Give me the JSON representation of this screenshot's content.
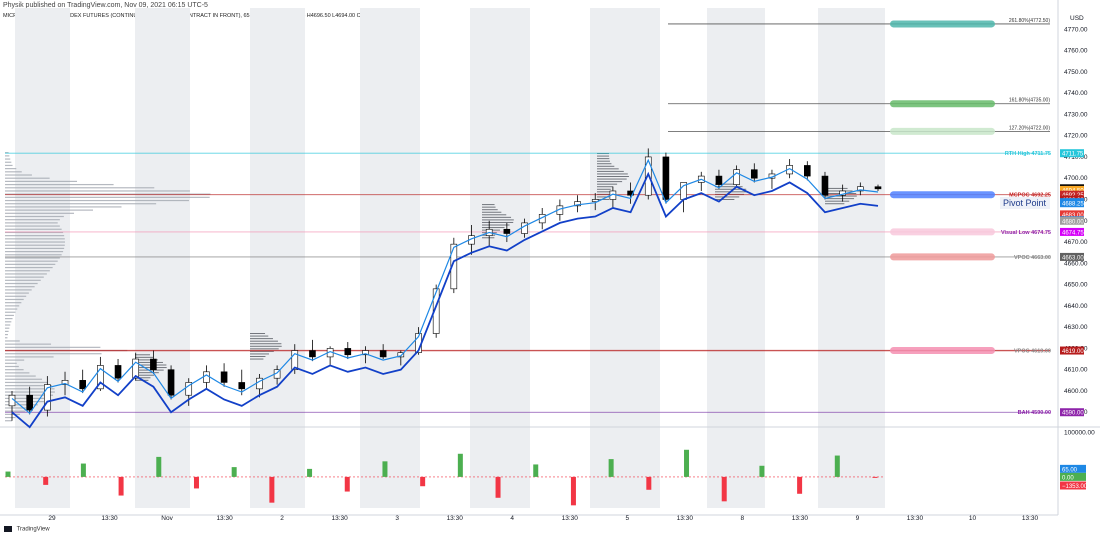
{
  "header": {
    "published": "Physik published on TradingView.com, Nov 09, 2021 06:15 UTC-5",
    "instrument": "MICRO E-MINI S&P 500 INDEX FUTURES (CONTINUOUS: CURRENT CONTRACT IN FRONT), 65, CME_MINI",
    "ohlc": "O4696.25  H4696.50  L4694.00  C4695.25  −1.00 (−0.02%)"
  },
  "footer": {
    "brand": "TradingView"
  },
  "pivot_label": "Pivot Point",
  "colors": {
    "background": "#ffffff",
    "session_shade": "#eceef1",
    "candle_up": "#ffffff",
    "candle_down": "#000000",
    "vwap_blue": "#1e88e5",
    "vwap_dark": "#1240c8",
    "volume_up": "#4caf50",
    "volume_down": "#f23645",
    "level_red": "#b71c1c",
    "rth_cyan": "#26c6da",
    "teal_zone": "#4db6ac",
    "green_zone": "#66bb6a",
    "light_green_zone": "#c8e6c9",
    "blue_zone": "#4f80ff",
    "pink_zone": "#f8c8dc",
    "red_zone": "#ef9a9a",
    "magenta_zone": "#f48fb1"
  },
  "chart_data": {
    "type": "candlestick",
    "title": "MICRO E-MINI S&P 500 INDEX FUTURES (CONTINUOUS: CURRENT CONTRACT IN FRONT), 65, CME_MINI",
    "y_axis_unit": "USD",
    "ylim": [
      4584,
      4780
    ],
    "y_ticks": [
      4590,
      4600,
      4610,
      4620,
      4630,
      4640,
      4650,
      4660,
      4670,
      4680,
      4690,
      4700,
      4710,
      4720,
      4730,
      4740,
      4750,
      4760,
      4770
    ],
    "x_tick_labels": [
      "29",
      "13:30",
      "Nov",
      "13:30",
      "2",
      "13:30",
      "3",
      "13:30",
      "4",
      "13:30",
      "5",
      "13:30",
      "8",
      "13:30",
      "9",
      "13:30",
      "10",
      "13:30"
    ],
    "ohlc_bars": [
      [
        4593,
        4600,
        4586,
        4598
      ],
      [
        4598,
        4602,
        4589,
        4591
      ],
      [
        4591,
        4607,
        4588,
        4603
      ],
      [
        4603,
        4609,
        4598,
        4605
      ],
      [
        4605,
        4610,
        4599,
        4601
      ],
      [
        4601,
        4616,
        4600,
        4612
      ],
      [
        4612,
        4615,
        4604,
        4606
      ],
      [
        4606,
        4618,
        4605,
        4615
      ],
      [
        4615,
        4619,
        4608,
        4610
      ],
      [
        4610,
        4612,
        4596,
        4598
      ],
      [
        4598,
        4606,
        4593,
        4604
      ],
      [
        4604,
        4612,
        4601,
        4609
      ],
      [
        4609,
        4613,
        4602,
        4604
      ],
      [
        4604,
        4610,
        4598,
        4601
      ],
      [
        4601,
        4608,
        4597,
        4606
      ],
      [
        4606,
        4612,
        4603,
        4610
      ],
      [
        4610,
        4622,
        4608,
        4619
      ],
      [
        4619,
        4624,
        4614,
        4616
      ],
      [
        4616,
        4621,
        4612,
        4620
      ],
      [
        4620,
        4623,
        4615,
        4617
      ],
      [
        4617,
        4621,
        4613,
        4619
      ],
      [
        4619,
        4622,
        4615,
        4616
      ],
      [
        4616,
        4619,
        4612,
        4618
      ],
      [
        4618,
        4630,
        4617,
        4627
      ],
      [
        4627,
        4650,
        4625,
        4648
      ],
      [
        4648,
        4672,
        4646,
        4669
      ],
      [
        4669,
        4678,
        4664,
        4673
      ],
      [
        4673,
        4680,
        4668,
        4676
      ],
      [
        4676,
        4679,
        4670,
        4674
      ],
      [
        4674,
        4681,
        4672,
        4679
      ],
      [
        4679,
        4686,
        4676,
        4683
      ],
      [
        4683,
        4690,
        4680,
        4687
      ],
      [
        4687,
        4692,
        4684,
        4689
      ],
      [
        4689,
        4693,
        4685,
        4690
      ],
      [
        4690,
        4696,
        4686,
        4694
      ],
      [
        4694,
        4698,
        4688,
        4692
      ],
      [
        4692,
        4714,
        4690,
        4710
      ],
      [
        4710,
        4712,
        4688,
        4690
      ],
      [
        4690,
        4694,
        4684,
        4698
      ],
      [
        4698,
        4703,
        4694,
        4701
      ],
      [
        4701,
        4704,
        4695,
        4697
      ],
      [
        4697,
        4706,
        4696,
        4704
      ],
      [
        4704,
        4707,
        4698,
        4700
      ],
      [
        4700,
        4704,
        4695,
        4702
      ],
      [
        4702,
        4709,
        4700,
        4706
      ],
      [
        4706,
        4708,
        4699,
        4701
      ],
      [
        4701,
        4703,
        4690,
        4692
      ],
      [
        4692,
        4697,
        4689,
        4694
      ],
      [
        4694,
        4698,
        4692,
        4696
      ],
      [
        4696,
        4697,
        4694,
        4695
      ]
    ],
    "volume_series": [
      {
        "name": "up",
        "values": [
          12000,
          30000,
          45000,
          22000,
          18000,
          35000,
          52000,
          28000,
          40000,
          61000,
          25000,
          48000
        ]
      },
      {
        "name": "down",
        "values": [
          -18000,
          -42000,
          -26000,
          -58000,
          -33000,
          -21000,
          -47000,
          -64000,
          -29000,
          -55000,
          -38000,
          -1353
        ]
      }
    ],
    "volume_ylim": [
      -70000,
      110000
    ],
    "volume_ticks": [
      100000
    ],
    "lines": [
      {
        "label": "261.80%(4772.50)",
        "value": 4772.5
      },
      {
        "label": "161.80%(4735.00)",
        "value": 4735.0
      },
      {
        "label": "127.20%(4722.00)",
        "value": 4722.0
      }
    ],
    "levels": [
      {
        "label": "RTH High 4711.75",
        "value": 4711.75
      },
      {
        "label": "MCPOC 4692.25",
        "value": 4692.25
      },
      {
        "label": "Visual Low 4674.75",
        "value": 4674.75
      },
      {
        "label": "VPOC 4663.00",
        "value": 4663.0
      },
      {
        "label": "VPOC 4619.00",
        "value": 4619.0
      },
      {
        "label": "BAH 4590.00",
        "value": 4590.0
      }
    ],
    "price_tags": [
      {
        "text": "4711.75",
        "value": 4711.75
      },
      {
        "text": "4695.25",
        "value": 4695.25
      },
      {
        "text": "44:13",
        "value": 4693.0
      },
      {
        "text": "4694.50",
        "value": 4694.5
      },
      {
        "text": "4692.25",
        "value": 4692.25
      },
      {
        "text": "4690.00",
        "value": 4690.0
      },
      {
        "text": "4688.75",
        "value": 4688.75
      },
      {
        "text": "4688.25",
        "value": 4688.25
      },
      {
        "text": "4683.00",
        "value": 4683.0
      },
      {
        "text": "4680.25",
        "value": 4680.25
      },
      {
        "text": "4680.00",
        "value": 4680.0
      },
      {
        "text": "4674.75",
        "value": 4674.75
      },
      {
        "text": "4663.00",
        "value": 4663.0
      },
      {
        "text": "4619.00",
        "value": 4619.0
      },
      {
        "text": "4590.00",
        "value": 4590.0
      }
    ],
    "volume_tags": [
      {
        "text": "65.00",
        "value": 65
      },
      {
        "text": "0.00",
        "value": 0
      },
      {
        "text": "−1353.00",
        "value": -1353
      }
    ]
  }
}
